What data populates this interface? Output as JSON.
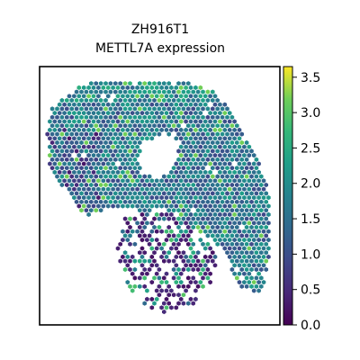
{
  "chart_data": {
    "type": "scatter",
    "title_lines": [
      "ZH916T1",
      "METTL7A expression"
    ],
    "xlabel": "",
    "ylabel": "",
    "colorbar": {
      "colormap": "viridis",
      "range": [
        0.0,
        3.65
      ],
      "ticks": [
        0.0,
        0.5,
        1.0,
        1.5,
        2.0,
        2.5,
        3.0,
        3.5
      ],
      "tick_labels": [
        "0.0",
        "0.5",
        "1.0",
        "1.5",
        "2.0",
        "2.5",
        "3.0",
        "3.5"
      ]
    },
    "point_marker": "hexagon",
    "grid": false,
    "legend": "none",
    "notes_hidden": []
  }
}
